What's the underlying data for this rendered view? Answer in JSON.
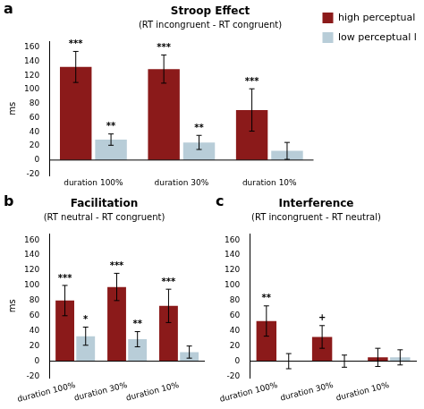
{
  "chart_data": [
    {
      "type": "bar",
      "panel_label": "a",
      "title": "Stroop Effect",
      "subtitle": "(RT incongruent - RT congruent)",
      "ylabel": "ms",
      "categories": [
        "duration 100%",
        "duration 30%",
        "duration 10%"
      ],
      "series": [
        {
          "name": "high perceptual load",
          "color": "#8B1A1A",
          "values": [
            132,
            129,
            71
          ],
          "errors": [
            22,
            20,
            30
          ],
          "annotations": [
            "***",
            "***",
            "***"
          ]
        },
        {
          "name": "low perceptual load",
          "color": "#B8CDD8",
          "values": [
            29,
            25,
            13
          ],
          "errors": [
            8,
            10,
            12
          ],
          "annotations": [
            "**",
            "**",
            null
          ]
        }
      ],
      "ylim": [
        -22,
        168
      ],
      "yticks": [
        -20,
        0,
        20,
        40,
        60,
        80,
        100,
        120,
        140,
        160
      ],
      "grid": false,
      "legend": "right"
    },
    {
      "type": "bar",
      "panel_label": "b",
      "title": "Facilitation",
      "subtitle": "(RT neutral - RT congruent)",
      "ylabel": "ms",
      "categories": [
        "duration 100%",
        "duration 30%",
        "duration 10%"
      ],
      "series": [
        {
          "color": "#8B1A1A",
          "values": [
            80,
            98,
            73
          ],
          "errors": [
            20,
            18,
            22
          ],
          "annotations": [
            "***",
            "***",
            "***"
          ]
        },
        {
          "color": "#B8CDD8",
          "values": [
            33,
            29,
            12
          ],
          "errors": [
            12,
            10,
            8
          ],
          "annotations": [
            "*",
            "**",
            null
          ]
        }
      ],
      "ylim": [
        -22,
        168
      ],
      "yticks": [
        -20,
        0,
        20,
        40,
        60,
        80,
        100,
        120,
        140,
        160
      ],
      "grid": false
    },
    {
      "type": "bar",
      "panel_label": "c",
      "title": "Interference",
      "subtitle": "(RT incongruent - RT neutral)",
      "categories": [
        "duration 100%",
        "duration 30%",
        "duration 10%"
      ],
      "series": [
        {
          "color": "#8B1A1A",
          "values": [
            53,
            32,
            5
          ],
          "errors": [
            20,
            15,
            12
          ],
          "annotations": [
            "**",
            "+",
            null
          ]
        },
        {
          "color": "#B8CDD8",
          "values": [
            0,
            0,
            5
          ],
          "errors": [
            10,
            8,
            10
          ],
          "annotations": [
            null,
            null,
            null
          ]
        }
      ],
      "ylim": [
        -22,
        168
      ],
      "yticks": [
        -20,
        0,
        20,
        40,
        60,
        80,
        100,
        120,
        140,
        160
      ],
      "grid": false
    }
  ]
}
